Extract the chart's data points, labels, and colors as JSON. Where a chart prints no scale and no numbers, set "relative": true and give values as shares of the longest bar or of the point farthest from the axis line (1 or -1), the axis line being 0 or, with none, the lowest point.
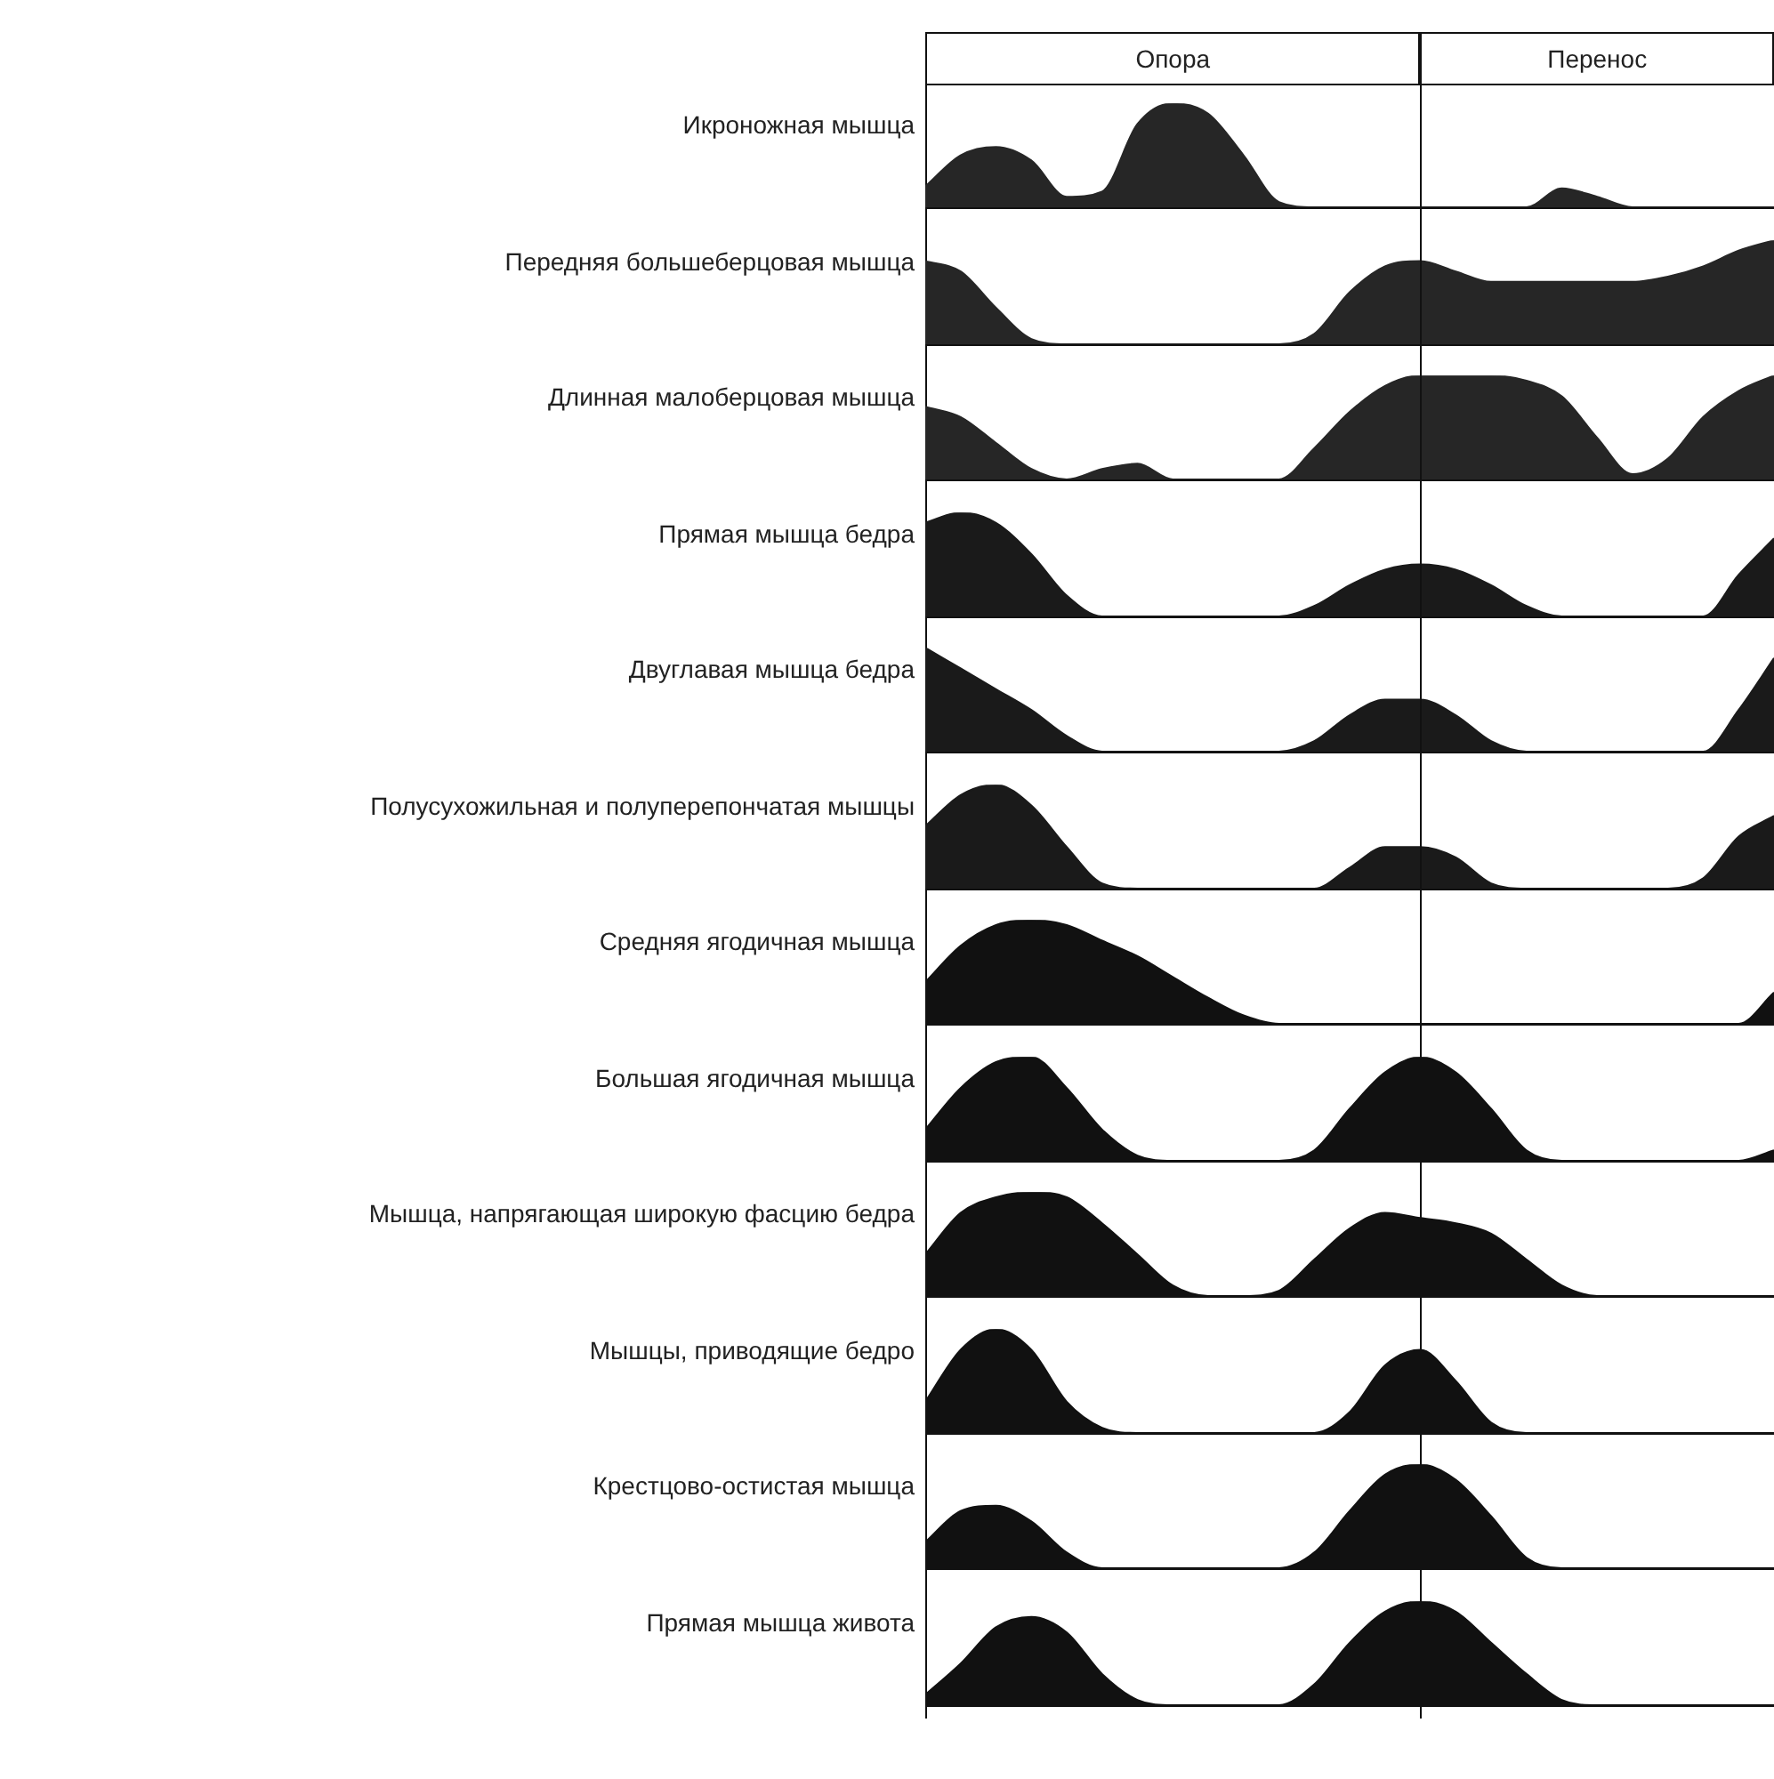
{
  "chart_data": [
    {
      "type": "other",
      "annotations": [
        "Опора",
        "Перенос"
      ]
    },
    {
      "type": "area",
      "ylabel": "Икроножная мышца",
      "relative": true,
      "categories": [
        null,
        null,
        null,
        null,
        null,
        null,
        null,
        null,
        null,
        null,
        null,
        null,
        null,
        null,
        null,
        null,
        null,
        null,
        null,
        null,
        null,
        null,
        null,
        null,
        null
      ],
      "series": [
        {
          "color": "#262626",
          "values": [
            0.2,
            0.5,
            0.58,
            0.45,
            0.1,
            0.15,
            0.8,
            1.0,
            0.9,
            0.5,
            0.05,
            0,
            0,
            0,
            0,
            0,
            0,
            0,
            0.18,
            0.1,
            0,
            0,
            0,
            0,
            0
          ]
        }
      ]
    },
    {
      "type": "area",
      "ylabel": "Передняя большеберцовая мышца",
      "relative": true,
      "categories": [
        null,
        null,
        null,
        null,
        null,
        null,
        null,
        null,
        null,
        null,
        null,
        null,
        null,
        null,
        null,
        null,
        null,
        null,
        null,
        null,
        null,
        null,
        null,
        null,
        null
      ],
      "series": [
        {
          "color": "#262626",
          "values": [
            0.8,
            0.7,
            0.35,
            0.05,
            0,
            0,
            0,
            0,
            0,
            0,
            0,
            0.1,
            0.5,
            0.75,
            0.8,
            0.7,
            0.6,
            0.6,
            0.6,
            0.6,
            0.6,
            0.65,
            0.75,
            0.9,
            1.0
          ]
        }
      ]
    },
    {
      "type": "area",
      "ylabel": "Длинная малоберцовая мышца",
      "relative": true,
      "categories": [
        null,
        null,
        null,
        null,
        null,
        null,
        null,
        null,
        null,
        null,
        null,
        null,
        null,
        null,
        null,
        null,
        null,
        null,
        null,
        null,
        null,
        null,
        null,
        null,
        null
      ],
      "series": [
        {
          "color": "#262626",
          "values": [
            0.7,
            0.6,
            0.35,
            0.1,
            0,
            0.1,
            0.15,
            0,
            0,
            0,
            0,
            0.3,
            0.65,
            0.9,
            1.0,
            1.0,
            1.0,
            0.95,
            0.8,
            0.4,
            0.05,
            0.2,
            0.6,
            0.85,
            1.0
          ]
        }
      ]
    },
    {
      "type": "area",
      "ylabel": "Прямая мышца бедра",
      "relative": true,
      "categories": [
        null,
        null,
        null,
        null,
        null,
        null,
        null,
        null,
        null,
        null,
        null,
        null,
        null,
        null,
        null,
        null,
        null,
        null,
        null,
        null,
        null,
        null,
        null,
        null,
        null
      ],
      "series": [
        {
          "color": "#1a1a1a",
          "values": [
            0.9,
            1.0,
            0.9,
            0.6,
            0.2,
            0,
            0,
            0,
            0,
            0,
            0,
            0.1,
            0.3,
            0.45,
            0.5,
            0.45,
            0.3,
            0.1,
            0,
            0,
            0,
            0,
            0,
            0.4,
            0.75
          ]
        }
      ]
    },
    {
      "type": "area",
      "ylabel": "Двуглавая мышца бедра",
      "relative": true,
      "categories": [
        null,
        null,
        null,
        null,
        null,
        null,
        null,
        null,
        null,
        null,
        null,
        null,
        null,
        null,
        null,
        null,
        null,
        null,
        null,
        null,
        null,
        null,
        null,
        null,
        null
      ],
      "series": [
        {
          "color": "#1a1a1a",
          "values": [
            1.0,
            0.8,
            0.6,
            0.4,
            0.15,
            0,
            0,
            0,
            0,
            0,
            0,
            0.1,
            0.35,
            0.5,
            0.5,
            0.35,
            0.1,
            0,
            0,
            0,
            0,
            0,
            0,
            0.4,
            0.9
          ]
        }
      ]
    },
    {
      "type": "area",
      "ylabel": "Полусухожильная и полуперепончатая мышцы",
      "relative": true,
      "categories": [
        null,
        null,
        null,
        null,
        null,
        null,
        null,
        null,
        null,
        null,
        null,
        null,
        null,
        null,
        null,
        null,
        null,
        null,
        null,
        null,
        null,
        null,
        null,
        null,
        null
      ],
      "series": [
        {
          "color": "#1a1a1a",
          "values": [
            0.6,
            0.9,
            1.0,
            0.8,
            0.4,
            0.05,
            0,
            0,
            0,
            0,
            0,
            0,
            0.2,
            0.4,
            0.4,
            0.3,
            0.05,
            0,
            0,
            0,
            0,
            0,
            0.1,
            0.5,
            0.7
          ]
        }
      ]
    },
    {
      "type": "area",
      "ylabel": "Средняя ягодичная мышца",
      "relative": true,
      "categories": [
        null,
        null,
        null,
        null,
        null,
        null,
        null,
        null,
        null,
        null,
        null,
        null,
        null,
        null,
        null,
        null,
        null,
        null,
        null,
        null,
        null,
        null,
        null,
        null,
        null
      ],
      "series": [
        {
          "color": "#111111",
          "values": [
            0.4,
            0.75,
            0.95,
            1.0,
            0.95,
            0.8,
            0.65,
            0.45,
            0.25,
            0.08,
            0,
            0,
            0,
            0,
            0,
            0,
            0,
            0,
            0,
            0,
            0,
            0,
            0,
            0,
            0.3
          ]
        }
      ]
    },
    {
      "type": "area",
      "ylabel": "Большая ягодичная мышца",
      "relative": true,
      "categories": [
        null,
        null,
        null,
        null,
        null,
        null,
        null,
        null,
        null,
        null,
        null,
        null,
        null,
        null,
        null,
        null,
        null,
        null,
        null,
        null,
        null,
        null,
        null,
        null,
        null
      ],
      "series": [
        {
          "color": "#111111",
          "values": [
            0.3,
            0.7,
            0.95,
            1.0,
            0.7,
            0.3,
            0.05,
            0,
            0,
            0,
            0,
            0.1,
            0.5,
            0.85,
            1.0,
            0.85,
            0.5,
            0.1,
            0,
            0,
            0,
            0,
            0,
            0,
            0.1
          ]
        }
      ]
    },
    {
      "type": "area",
      "ylabel": "Мышца, напрягающая широкую фасцию бедра",
      "relative": true,
      "categories": [
        null,
        null,
        null,
        null,
        null,
        null,
        null,
        null,
        null,
        null,
        null,
        null,
        null,
        null,
        null,
        null,
        null,
        null,
        null,
        null,
        null,
        null,
        null,
        null,
        null
      ],
      "series": [
        {
          "color": "#111111",
          "values": [
            0.4,
            0.8,
            0.95,
            1.0,
            0.95,
            0.7,
            0.4,
            0.1,
            0,
            0,
            0.05,
            0.35,
            0.65,
            0.8,
            0.75,
            0.7,
            0.6,
            0.35,
            0.1,
            0,
            0,
            0,
            0,
            0,
            0
          ]
        }
      ]
    },
    {
      "type": "area",
      "ylabel": "Мышцы, приводящие бедро",
      "relative": true,
      "categories": [
        null,
        null,
        null,
        null,
        null,
        null,
        null,
        null,
        null,
        null,
        null,
        null,
        null,
        null,
        null,
        null,
        null,
        null,
        null,
        null,
        null,
        null,
        null,
        null,
        null
      ],
      "series": [
        {
          "color": "#111111",
          "values": [
            0.3,
            0.8,
            1.0,
            0.8,
            0.3,
            0.05,
            0,
            0,
            0,
            0,
            0,
            0,
            0.2,
            0.65,
            0.8,
            0.5,
            0.1,
            0,
            0,
            0,
            0,
            0,
            0,
            0,
            0
          ]
        }
      ]
    },
    {
      "type": "area",
      "ylabel": "Крестцово-остистая мышца",
      "relative": true,
      "categories": [
        null,
        null,
        null,
        null,
        null,
        null,
        null,
        null,
        null,
        null,
        null,
        null,
        null,
        null,
        null,
        null,
        null,
        null,
        null,
        null,
        null,
        null,
        null,
        null,
        null
      ],
      "series": [
        {
          "color": "#111111",
          "values": [
            0.25,
            0.55,
            0.6,
            0.45,
            0.15,
            0,
            0,
            0,
            0,
            0,
            0,
            0.15,
            0.55,
            0.9,
            1.0,
            0.85,
            0.5,
            0.1,
            0,
            0,
            0,
            0,
            0,
            0,
            0
          ]
        }
      ]
    },
    {
      "type": "area",
      "ylabel": "Прямая мышца живота",
      "relative": true,
      "categories": [
        null,
        null,
        null,
        null,
        null,
        null,
        null,
        null,
        null,
        null,
        null,
        null,
        null,
        null,
        null,
        null,
        null,
        null,
        null,
        null,
        null,
        null,
        null,
        null,
        null
      ],
      "series": [
        {
          "color": "#111111",
          "values": [
            0.1,
            0.4,
            0.75,
            0.85,
            0.7,
            0.3,
            0.05,
            0,
            0,
            0,
            0,
            0.2,
            0.6,
            0.9,
            1.0,
            0.9,
            0.6,
            0.3,
            0.05,
            0,
            0,
            0,
            0,
            0,
            0
          ]
        }
      ]
    }
  ]
}
